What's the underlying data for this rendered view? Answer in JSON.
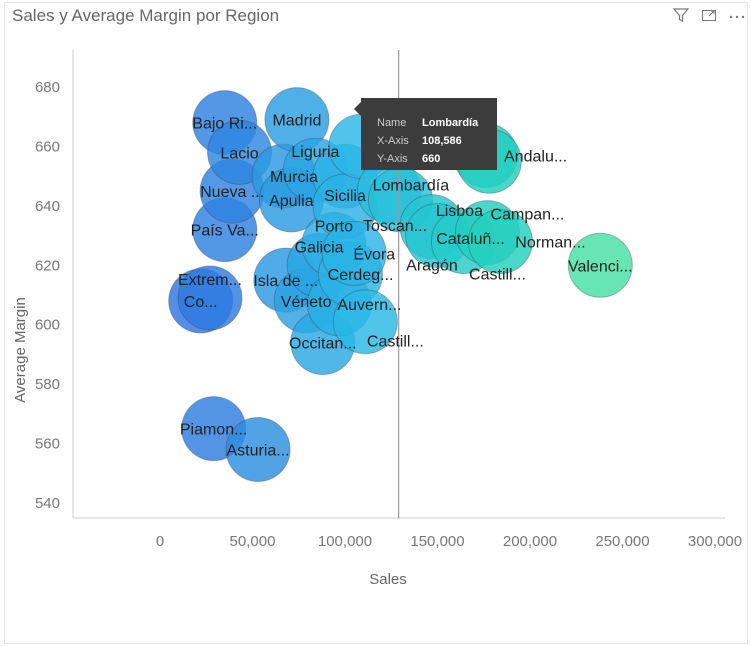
{
  "header": {
    "title": "Sales y Average Margin por Region",
    "icons": [
      "filter-icon",
      "focus-mode-icon",
      "more-options-icon"
    ]
  },
  "tooltip": {
    "name_label": "Name",
    "name": "Lombardía",
    "x_label": "X-Axis",
    "x": "108,586",
    "y_label": "Y-Axis",
    "y": "660"
  },
  "chart_data": {
    "type": "scatter",
    "title": "Sales y Average Margin por Region",
    "xlabel": "Sales",
    "ylabel": "Average Margin",
    "xlim": [
      -45000,
      305000
    ],
    "ylim": [
      535,
      692
    ],
    "xticks": [
      0,
      50000,
      100000,
      150000,
      200000,
      250000,
      300000
    ],
    "xtick_labels": [
      "0",
      "50,000",
      "100,000",
      "150,000",
      "200,000",
      "250,000",
      "300,000"
    ],
    "yticks": [
      540,
      560,
      580,
      600,
      620,
      640,
      660,
      680
    ],
    "ytick_labels": [
      "540",
      "560",
      "580",
      "600",
      "620",
      "640",
      "660",
      "680"
    ],
    "grid": false,
    "hover_x": 129000,
    "points": [
      {
        "label": "Co...",
        "x": 22000,
        "y": 608
      },
      {
        "label": "Extrem...",
        "x": 27000,
        "y": 609
      },
      {
        "label": "Piamon...",
        "x": 29000,
        "y": 565
      },
      {
        "label": "Bajo Ri...",
        "x": 35000,
        "y": 668
      },
      {
        "label": "País Va...",
        "x": 35000,
        "y": 632
      },
      {
        "label": "Nueva ...",
        "x": 39000,
        "y": 645
      },
      {
        "label": "Lacio",
        "x": 43000,
        "y": 658
      },
      {
        "label": "Asturia...",
        "x": 53000,
        "y": 558
      },
      {
        "label": "Murcia",
        "x": 67000,
        "y": 650
      },
      {
        "label": "Isla de ...",
        "x": 68000,
        "y": 615
      },
      {
        "label": "Apulia",
        "x": 71000,
        "y": 642
      },
      {
        "label": "Madrid",
        "x": 74000,
        "y": 669
      },
      {
        "label": "Véneto",
        "x": 79000,
        "y": 608
      },
      {
        "label": "Liguria",
        "x": 84000,
        "y": 652
      },
      {
        "label": "Galicia",
        "x": 86000,
        "y": 620
      },
      {
        "label": "Occitan...",
        "x": 88000,
        "y": 594
      },
      {
        "label": "Porto",
        "x": 94000,
        "y": 627
      },
      {
        "label": "Auvern...",
        "x": 97000,
        "y": 607
      },
      {
        "label": "Sicilia",
        "x": 100000,
        "y": 650
      },
      {
        "label": "Toscan...",
        "x": 100000,
        "y": 640
      },
      {
        "label": "Cerdeg...",
        "x": 103000,
        "y": 617
      },
      {
        "label": "Évora",
        "x": 105000,
        "y": 624
      },
      {
        "label": "Lombardía",
        "x": 108586,
        "y": 660
      },
      {
        "label": "Castill...",
        "x": 111000,
        "y": 601
      },
      {
        "label": "Lisboa",
        "x": 124000,
        "y": 645
      },
      {
        "label": "Cataluñ...",
        "x": 130000,
        "y": 642
      },
      {
        "label": "Aragón",
        "x": 147000,
        "y": 633
      },
      {
        "label": "Castill...",
        "x": 150000,
        "y": 630
      },
      {
        "label": "",
        "x": 164000,
        "y": 628
      },
      {
        "label": "Andalu...",
        "x": 176000,
        "y": 657
      },
      {
        "label": "Campan...",
        "x": 177000,
        "y": 631
      },
      {
        "label": "",
        "x": 178000,
        "y": 655
      },
      {
        "label": "Norman...",
        "x": 184000,
        "y": 628
      },
      {
        "label": "Valenci...",
        "x": 238000,
        "y": 620
      }
    ],
    "colors": {
      "low": "#2f66dd",
      "mid": "#29b8e6",
      "high": "#22cfbf",
      "max": "#48e0a4"
    }
  }
}
